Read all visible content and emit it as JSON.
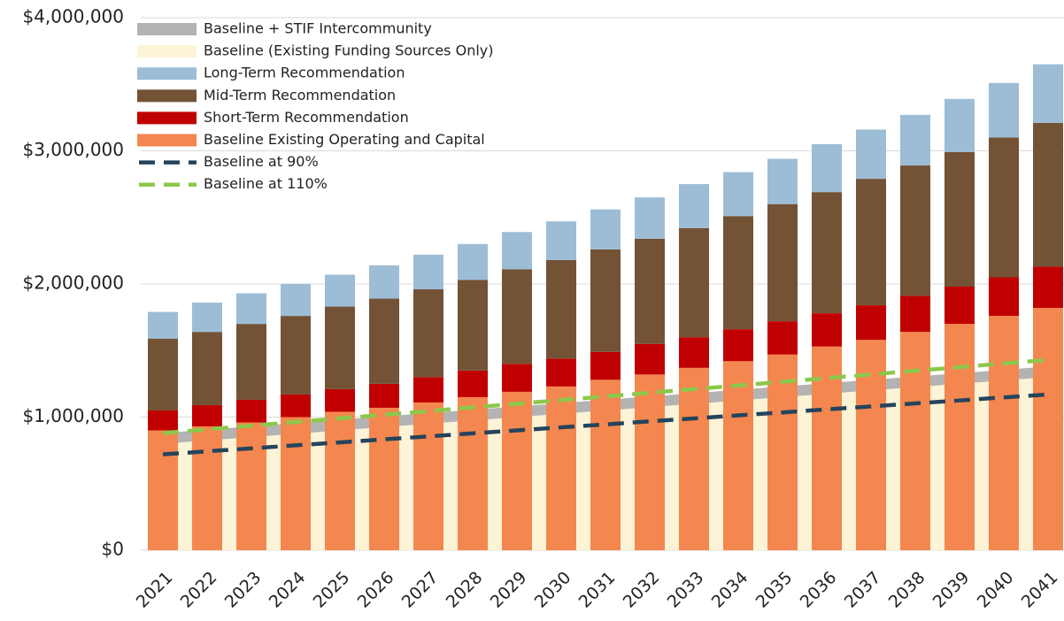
{
  "chart_data": {
    "type": "bar",
    "categories": [
      "2021",
      "2022",
      "2023",
      "2024",
      "2025",
      "2026",
      "2027",
      "2028",
      "2029",
      "2030",
      "2031",
      "2032",
      "2033",
      "2034",
      "2035",
      "2036",
      "2037",
      "2038",
      "2039",
      "2040",
      "2041"
    ],
    "ylim": [
      0,
      4000000
    ],
    "yticks": [
      {
        "value": 0,
        "label": "$0"
      },
      {
        "value": 1000000,
        "label": "$1,000,000"
      },
      {
        "value": 2000000,
        "label": "$2,000,000"
      },
      {
        "value": 3000000,
        "label": "$3,000,000"
      },
      {
        "value": 4000000,
        "label": "$4,000,000"
      }
    ],
    "grid": true,
    "legend": "upper left",
    "series": [
      {
        "name": "Baseline + STIF Intercommunity",
        "type": "area",
        "color": "#b3b3b3",
        "values": [
          80000,
          80000,
          80000,
          80000,
          80000,
          80000,
          80000,
          80000,
          80000,
          80000,
          80000,
          80000,
          80000,
          80000,
          80000,
          80000,
          80000,
          80000,
          80000,
          80000,
          80000
        ]
      },
      {
        "name": "Baseline (Existing Funding Sources Only)",
        "type": "area",
        "color": "#fdf3d6",
        "values": [
          800000,
          825000,
          850000,
          875000,
          900000,
          925000,
          950000,
          975000,
          1000000,
          1025000,
          1050000,
          1075000,
          1100000,
          1125000,
          1150000,
          1175000,
          1200000,
          1225000,
          1250000,
          1275000,
          1300000
        ]
      },
      {
        "name": "Long-Term Recommendation",
        "type": "bar",
        "color": "#9dbdd6",
        "values": [
          200000,
          220000,
          230000,
          240000,
          240000,
          250000,
          260000,
          270000,
          280000,
          290000,
          300000,
          310000,
          330000,
          330000,
          340000,
          360000,
          370000,
          380000,
          400000,
          410000,
          440000
        ]
      },
      {
        "name": "Mid-Term Recommendation",
        "type": "bar",
        "color": "#745235",
        "values": [
          540000,
          550000,
          570000,
          590000,
          620000,
          640000,
          660000,
          680000,
          710000,
          740000,
          770000,
          790000,
          820000,
          850000,
          880000,
          910000,
          950000,
          980000,
          1010000,
          1050000,
          1080000
        ]
      },
      {
        "name": "Short-Term Recommendation",
        "type": "bar",
        "color": "#c00000",
        "values": [
          150000,
          160000,
          170000,
          170000,
          170000,
          180000,
          190000,
          200000,
          210000,
          210000,
          210000,
          230000,
          230000,
          240000,
          250000,
          250000,
          260000,
          270000,
          280000,
          290000,
          310000
        ]
      },
      {
        "name": "Baseline Existing Operating and Capital",
        "type": "bar",
        "color": "#f4874f",
        "values": [
          900000,
          930000,
          960000,
          1000000,
          1040000,
          1070000,
          1110000,
          1150000,
          1190000,
          1230000,
          1280000,
          1320000,
          1370000,
          1420000,
          1470000,
          1530000,
          1580000,
          1640000,
          1700000,
          1760000,
          1820000
        ]
      },
      {
        "name": "Baseline at 90%",
        "type": "line",
        "color": "#24445c",
        "values": [
          720000,
          743000,
          765000,
          788000,
          810000,
          833000,
          855000,
          878000,
          900000,
          923000,
          945000,
          968000,
          990000,
          1013000,
          1035000,
          1058000,
          1080000,
          1103000,
          1125000,
          1148000,
          1170000
        ]
      },
      {
        "name": "Baseline at 110%",
        "type": "line",
        "color": "#8cc84b",
        "values": [
          880000,
          908000,
          935000,
          963000,
          990000,
          1018000,
          1045000,
          1073000,
          1100000,
          1128000,
          1155000,
          1183000,
          1210000,
          1238000,
          1265000,
          1293000,
          1320000,
          1348000,
          1375000,
          1403000,
          1430000
        ]
      }
    ]
  }
}
